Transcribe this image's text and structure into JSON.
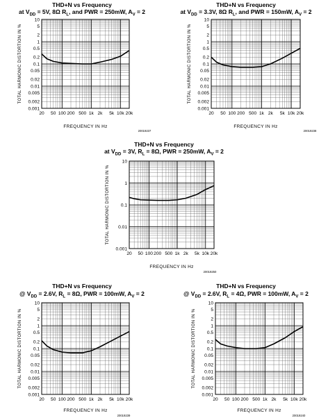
{
  "chart_data": [
    {
      "type": "line",
      "title": "THD+N vs Frequency",
      "subtitle": {
        "pre": "at V",
        "sub1": "DD",
        "mid1": " = 5V, 8Ω R",
        "sub2": "L",
        "mid2": ", and PWR = 250mW, A",
        "sub3": "V",
        "post": " = 2"
      },
      "xlabel": "FREQUENCY IN Hz",
      "ylabel": "TOTAL HARMONIC DISTORTION IN %",
      "x_scale": "log",
      "y_scale": "log",
      "xlim": [
        20,
        20000
      ],
      "ylim": [
        0.001,
        10
      ],
      "grid": true,
      "xticks": [
        "20",
        "50",
        "100",
        "200",
        "500",
        "1k",
        "2k",
        "5k",
        "10k",
        "20k"
      ],
      "yticks": [
        "10",
        "5",
        "2",
        "1",
        "0.5",
        "0.2",
        "0.1",
        "0.05",
        "0.02",
        "0.01",
        "0.005",
        "0.002",
        "0.001"
      ],
      "figure_id": "20019237",
      "series": [
        {
          "x": [
            20,
            30,
            50,
            100,
            200,
            500,
            1000,
            2000,
            5000,
            10000,
            20000
          ],
          "y": [
            0.28,
            0.17,
            0.13,
            0.11,
            0.105,
            0.1,
            0.1,
            0.12,
            0.16,
            0.22,
            0.4
          ]
        }
      ]
    },
    {
      "type": "line",
      "title": "THD+N vs Frequency",
      "subtitle": {
        "pre": "at V",
        "sub1": "DD",
        "mid1": " = 3.3V, 8Ω R",
        "sub2": "L",
        "mid2": ", and PWR = 150mW, A",
        "sub3": "V",
        "post": " = 2"
      },
      "xlabel": "FREQUENCY IN Hz",
      "ylabel": "TOTAL HARMONIC DISTORTION IN %",
      "x_scale": "log",
      "y_scale": "log",
      "xlim": [
        20,
        20000
      ],
      "ylim": [
        0.001,
        10
      ],
      "grid": true,
      "xticks": [
        "20",
        "50",
        "100",
        "200",
        "500",
        "1k",
        "2k",
        "5k",
        "10k",
        "20k"
      ],
      "yticks": [
        "10",
        "5",
        "2",
        "1",
        "0.5",
        "0.2",
        "0.1",
        "0.05",
        "0.02",
        "0.01",
        "0.005",
        "0.002",
        "0.001"
      ],
      "figure_id": "20019238",
      "series": [
        {
          "x": [
            20,
            30,
            50,
            100,
            200,
            500,
            1000,
            2000,
            5000,
            10000,
            20000
          ],
          "y": [
            0.2,
            0.12,
            0.09,
            0.075,
            0.07,
            0.07,
            0.075,
            0.1,
            0.18,
            0.3,
            0.5
          ]
        }
      ]
    },
    {
      "type": "line",
      "title": "THD+N vs Frequency",
      "subtitle": {
        "pre": "at V",
        "sub1": "DD",
        "mid1": " = 3V, R",
        "sub2": "L",
        "mid2": " = 8Ω, PWR = 250mW, A",
        "sub3": "V",
        "post": " = 2"
      },
      "xlabel": "FREQUENCY IN Hz",
      "ylabel": "TOTAL HARMONIC DISTORTION IN %",
      "x_scale": "log",
      "y_scale": "log",
      "xlim": [
        20,
        20000
      ],
      "ylim": [
        0.001,
        10
      ],
      "grid": true,
      "xticks": [
        "20",
        "50",
        "100",
        "200",
        "500",
        "1k",
        "2k",
        "5k",
        "10k",
        "20k"
      ],
      "yticks": [
        "10",
        "1",
        "0.1",
        "0.01",
        "0.001"
      ],
      "figure_id": "20019250",
      "series": [
        {
          "x": [
            20,
            30,
            50,
            100,
            200,
            500,
            1000,
            2000,
            5000,
            10000,
            20000
          ],
          "y": [
            0.22,
            0.19,
            0.17,
            0.165,
            0.16,
            0.16,
            0.17,
            0.2,
            0.3,
            0.5,
            0.75
          ]
        }
      ]
    },
    {
      "type": "line",
      "title": "THD+N vs Frequency",
      "subtitle": {
        "pre": "@ V",
        "sub1": "DD",
        "mid1": " = 2.6V, R",
        "sub2": "L",
        "mid2": " = 8Ω, PWR = 100mW, A",
        "sub3": "V",
        "post": " = 2"
      },
      "xlabel": "FREQUENCY IN Hz",
      "ylabel": "TOTAL HARMONIC DISTORTION IN %",
      "x_scale": "log",
      "y_scale": "log",
      "xlim": [
        20,
        20000
      ],
      "ylim": [
        0.001,
        10
      ],
      "grid": true,
      "xticks": [
        "20",
        "50",
        "100",
        "200",
        "500",
        "1k",
        "2k",
        "5k",
        "10k",
        "20k"
      ],
      "yticks": [
        "10",
        "5",
        "2",
        "1",
        "0.5",
        "0.2",
        "0.1",
        "0.05",
        "0.02",
        "0.01",
        "0.005",
        "0.002",
        "0.001"
      ],
      "figure_id": "20019239",
      "series": [
        {
          "x": [
            20,
            30,
            50,
            100,
            200,
            500,
            1000,
            2000,
            5000,
            10000,
            20000
          ],
          "y": [
            0.22,
            0.13,
            0.09,
            0.07,
            0.065,
            0.065,
            0.08,
            0.12,
            0.22,
            0.35,
            0.55
          ]
        }
      ]
    },
    {
      "type": "line",
      "title": "THD+N vs Frequency",
      "subtitle": {
        "pre": "@ V",
        "sub1": "DD",
        "mid1": " = 2.6V, R",
        "sub2": "L",
        "mid2": " = 4Ω, PWR = 100mW, A",
        "sub3": "V",
        "post": " = 2"
      },
      "xlabel": "FREQUENCY IN Hz",
      "ylabel": "TOTAL HARMONIC DISTORTION IN %",
      "x_scale": "log",
      "y_scale": "log",
      "xlim": [
        20,
        20000
      ],
      "ylim": [
        0.001,
        10
      ],
      "grid": true,
      "xticks": [
        "20",
        "50",
        "100",
        "200",
        "500",
        "1k",
        "2k",
        "5k",
        "10k",
        "20k"
      ],
      "yticks": [
        "10",
        "5",
        "2",
        "1",
        "0.5",
        "0.2",
        "0.1",
        "0.05",
        "0.02",
        "0.01",
        "0.005",
        "0.002",
        "0.001"
      ],
      "figure_id": "20019240",
      "series": [
        {
          "x": [
            20,
            30,
            50,
            100,
            200,
            500,
            1000,
            2000,
            5000,
            10000,
            20000
          ],
          "y": [
            0.25,
            0.16,
            0.13,
            0.11,
            0.1,
            0.1,
            0.11,
            0.16,
            0.3,
            0.55,
            0.9
          ]
        }
      ]
    }
  ]
}
